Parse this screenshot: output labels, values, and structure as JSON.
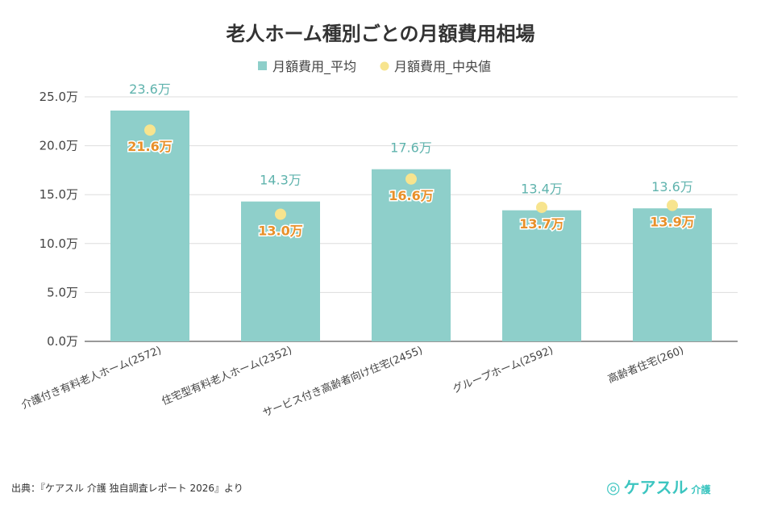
{
  "chart_data": {
    "type": "bar",
    "title": "老人ホーム種別ごとの月額費用相場",
    "categories": [
      "介護付き有料老人ホーム(2572)",
      "住宅型有料老人ホーム(2352)",
      "サービス付き高齢者向け住宅(2455)",
      "グループホーム(2592)",
      "高齢者住宅(260)"
    ],
    "series": [
      {
        "name": "月額費用_平均",
        "kind": "bar",
        "color": "#8ecfca",
        "values": [
          23.6,
          14.3,
          17.6,
          13.4,
          13.6
        ],
        "labels": [
          "23.6万",
          "14.3万",
          "17.6万",
          "13.4万",
          "13.6万"
        ]
      },
      {
        "name": "月額費用_中央値",
        "kind": "point",
        "color": "#f7e48e",
        "values": [
          21.6,
          13.0,
          16.6,
          13.7,
          13.9
        ],
        "labels": [
          "21.6万",
          "13.0万",
          "16.6万",
          "13.7万",
          "13.9万"
        ]
      }
    ],
    "ylim": [
      0,
      25
    ],
    "yticks": [
      0,
      5,
      10,
      15,
      20,
      25
    ],
    "ytick_labels": [
      "0.0万",
      "5.0万",
      "10.0万",
      "15.0万",
      "20.0万",
      "25.0万"
    ],
    "grid": true,
    "legend": "top-center"
  },
  "source": "出典：『ケアスル 介護 独自調査レポート 2026』より",
  "logo": {
    "main": "ケアスル",
    "sub": "介護"
  }
}
